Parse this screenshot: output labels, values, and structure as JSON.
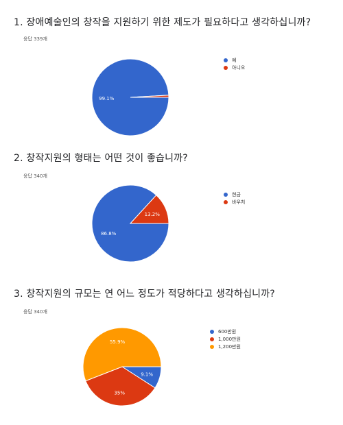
{
  "questions": [
    {
      "title": "1. 장애예술인의 창작을 지원하기 위한 제도가 필요하다고 생각하십니까?",
      "response_count": "응답 339개"
    },
    {
      "title": "2. 창작지원의 형태는 어떤 것이 좋습니까?",
      "response_count": "응답 340개"
    },
    {
      "title": "3. 창작지원의 규모는 연 어느 정도가 적당하다고 생각하십니까?",
      "response_count": "응답 340개"
    }
  ],
  "chart_data": [
    {
      "type": "pie",
      "labels": [
        "예",
        "아니오"
      ],
      "values": [
        99.1,
        0.9
      ],
      "value_labels": [
        "99.1%",
        ""
      ],
      "colors": [
        "#3366cc",
        "#dc3912"
      ],
      "legend_position": "right"
    },
    {
      "type": "pie",
      "labels": [
        "현금",
        "바우처"
      ],
      "values": [
        86.8,
        13.2
      ],
      "value_labels": [
        "86.8%",
        "13.2%"
      ],
      "colors": [
        "#3366cc",
        "#dc3912"
      ],
      "legend_position": "right"
    },
    {
      "type": "pie",
      "labels": [
        "600만원",
        "1,000만원",
        "1,200만원"
      ],
      "values": [
        9.1,
        35.0,
        55.9
      ],
      "value_labels": [
        "9.1%",
        "35%",
        "55.9%"
      ],
      "colors": [
        "#3366cc",
        "#dc3912",
        "#ff9900"
      ],
      "legend_position": "right"
    }
  ]
}
